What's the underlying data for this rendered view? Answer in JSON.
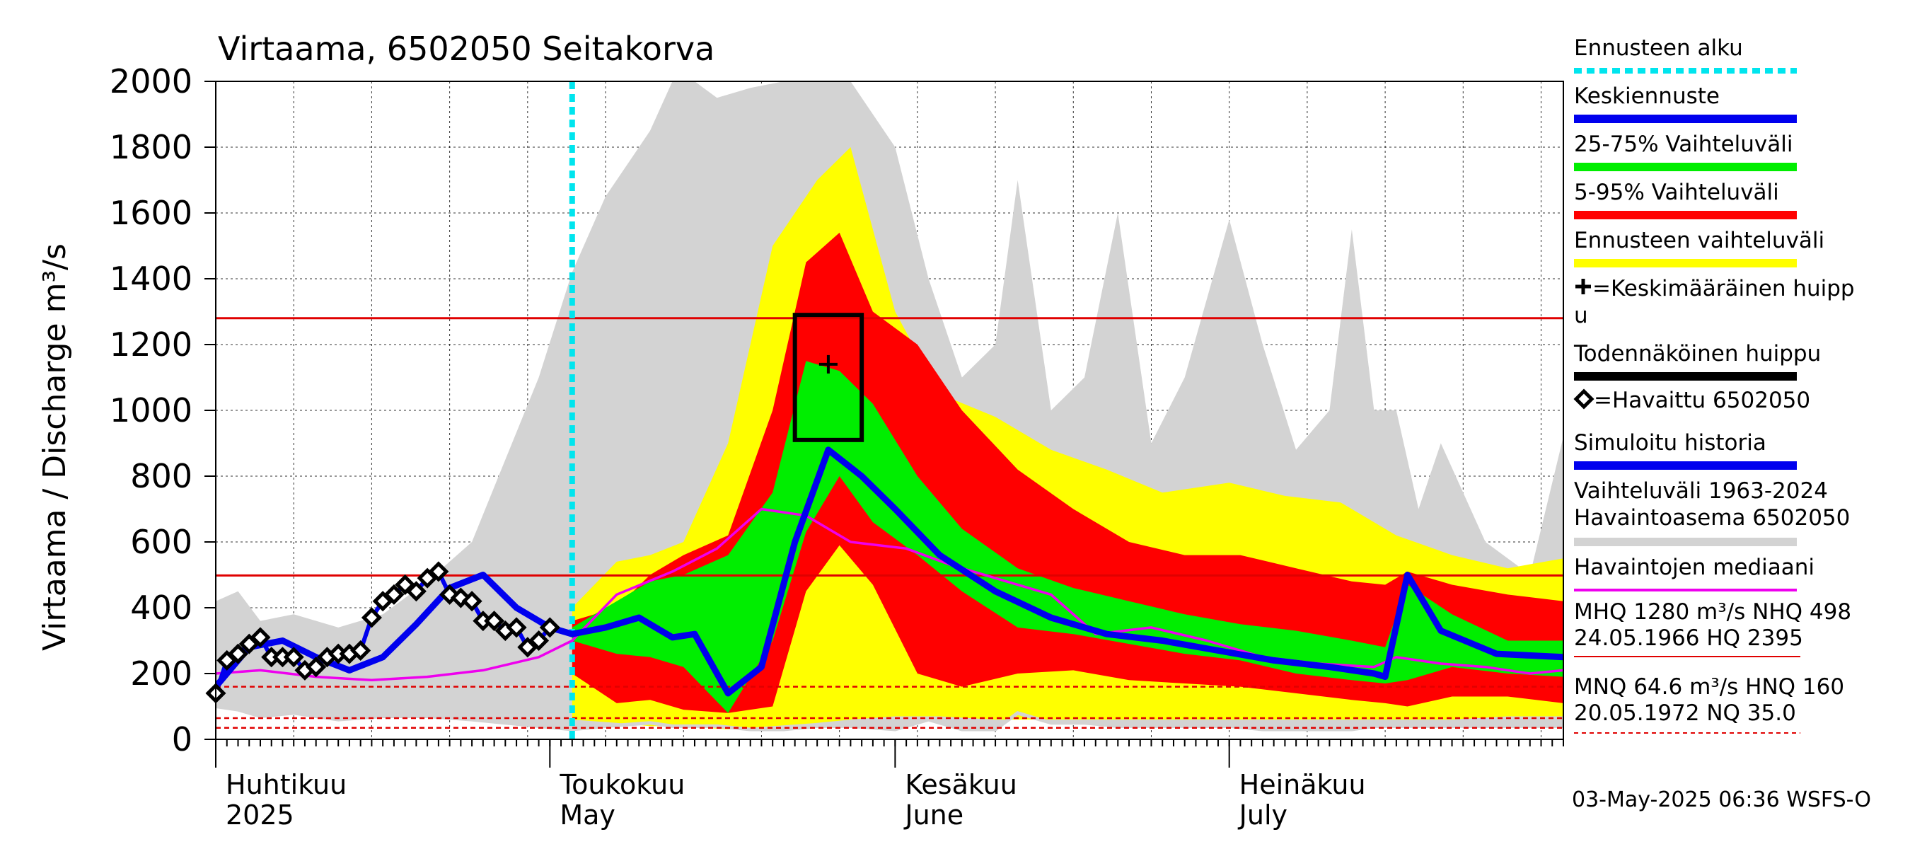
{
  "chart_data": {
    "type": "area",
    "title": "Virtaama, 6502050 Seitakorva",
    "ylabel": "Virtaama / Discharge   m³/s",
    "ylim": [
      0,
      2000
    ],
    "yticks": [
      "0",
      "200",
      "400",
      "600",
      "800",
      "1000",
      "1200",
      "1400",
      "1600",
      "1800",
      "2000"
    ],
    "x_start": "2025-04-01",
    "x_end": "2025-07-31",
    "months": [
      {
        "name_fi": "Huhtikuu",
        "name_en": "2025",
        "start": "2025-04-01"
      },
      {
        "name_fi": "Toukokuu",
        "name_en": "May",
        "start": "2025-05-01"
      },
      {
        "name_fi": "Kesäkuu",
        "name_en": "June",
        "start": "2025-06-01"
      },
      {
        "name_fi": "Heinäkuu",
        "name_en": "July",
        "start": "2025-07-01"
      }
    ],
    "forecast_start": "2025-05-03",
    "reference_lines": [
      {
        "name": "MHQ",
        "value": 1280,
        "style": "solid",
        "color": "#e00000"
      },
      {
        "name": "NHQ",
        "value": 498,
        "style": "solid",
        "color": "#e00000"
      },
      {
        "name": "MNQ",
        "value": 64.6,
        "style": "dashed",
        "color": "#e00000"
      },
      {
        "name": "HNQ",
        "value": 160,
        "style": "dashed",
        "color": "#e00000"
      },
      {
        "name": "NQ",
        "value": 35.0,
        "style": "dashed",
        "color": "#e00000"
      }
    ],
    "peak_box": {
      "x_from": "2025-05-23",
      "x_to": "2025-05-29",
      "y_from": 910,
      "y_to": 1290
    },
    "mean_peak": {
      "x": "2025-05-26",
      "y": 1140
    },
    "series": [
      {
        "name": "Vaihteluväli 1963-2024 Havaintoasema 6502050",
        "kind": "band",
        "color": "#d3d3d3",
        "x": [
          "2025-04-01",
          "2025-04-03",
          "2025-04-05",
          "2025-04-08",
          "2025-04-12",
          "2025-04-16",
          "2025-04-20",
          "2025-04-24",
          "2025-04-27",
          "2025-04-30",
          "2025-05-03",
          "2025-05-06",
          "2025-05-10",
          "2025-05-12",
          "2025-05-14",
          "2025-05-16",
          "2025-05-19",
          "2025-05-22",
          "2025-05-25",
          "2025-05-28",
          "2025-06-01",
          "2025-06-04",
          "2025-06-07",
          "2025-06-10",
          "2025-06-12",
          "2025-06-15",
          "2025-06-18",
          "2025-06-21",
          "2025-06-24",
          "2025-06-27",
          "2025-07-01",
          "2025-07-04",
          "2025-07-07",
          "2025-07-10",
          "2025-07-12",
          "2025-07-14",
          "2025-07-16",
          "2025-07-18",
          "2025-07-20",
          "2025-07-24",
          "2025-07-28",
          "2025-07-31"
        ],
        "low": [
          100,
          90,
          70,
          80,
          60,
          70,
          70,
          60,
          50,
          40,
          30,
          40,
          50,
          40,
          40,
          40,
          30,
          30,
          40,
          40,
          30,
          60,
          30,
          30,
          80,
          50,
          50,
          40,
          40,
          40,
          40,
          30,
          30,
          30,
          30,
          40,
          40,
          40,
          40,
          40,
          40,
          40
        ],
        "high": [
          420,
          450,
          360,
          380,
          340,
          380,
          480,
          600,
          850,
          1100,
          1420,
          1650,
          1850,
          2000,
          2000,
          1950,
          1980,
          2000,
          2000,
          2000,
          1800,
          1400,
          1100,
          1200,
          1700,
          1000,
          1100,
          1600,
          900,
          1100,
          1580,
          1200,
          880,
          1000,
          1550,
          1000,
          1000,
          700,
          900,
          600,
          500,
          920
        ]
      },
      {
        "name": "Ennusteen vaihteluväli",
        "kind": "band",
        "color": "#ffff00",
        "x": [
          "2025-05-03",
          "2025-05-07",
          "2025-05-10",
          "2025-05-13",
          "2025-05-17",
          "2025-05-21",
          "2025-05-25",
          "2025-05-28",
          "2025-06-01",
          "2025-06-05",
          "2025-06-10",
          "2025-06-15",
          "2025-06-20",
          "2025-06-25",
          "2025-07-01",
          "2025-07-06",
          "2025-07-11",
          "2025-07-16",
          "2025-07-21",
          "2025-07-26",
          "2025-07-31"
        ],
        "low": [
          60,
          50,
          40,
          40,
          30,
          40,
          50,
          60,
          70,
          70,
          60,
          60,
          60,
          60,
          60,
          60,
          60,
          60,
          60,
          70,
          70
        ],
        "high": [
          400,
          540,
          560,
          600,
          900,
          1500,
          1700,
          1800,
          1300,
          1050,
          980,
          880,
          820,
          750,
          780,
          740,
          720,
          620,
          560,
          520,
          550
        ]
      },
      {
        "name": "5-95% Vaihteluväli",
        "kind": "band",
        "color": "#ff0000",
        "x": [
          "2025-05-03",
          "2025-05-07",
          "2025-05-10",
          "2025-05-13",
          "2025-05-17",
          "2025-05-21",
          "2025-05-24",
          "2025-05-27",
          "2025-05-30",
          "2025-06-03",
          "2025-06-07",
          "2025-06-12",
          "2025-06-17",
          "2025-06-22",
          "2025-06-27",
          "2025-07-02",
          "2025-07-07",
          "2025-07-12",
          "2025-07-15",
          "2025-07-17",
          "2025-07-21",
          "2025-07-26",
          "2025-07-31"
        ],
        "low": [
          200,
          110,
          120,
          90,
          80,
          100,
          450,
          590,
          470,
          200,
          160,
          200,
          210,
          180,
          170,
          160,
          140,
          120,
          110,
          100,
          130,
          130,
          110
        ],
        "high": [
          360,
          400,
          500,
          560,
          620,
          1000,
          1450,
          1540,
          1300,
          1200,
          1000,
          820,
          700,
          600,
          560,
          560,
          520,
          480,
          470,
          510,
          470,
          440,
          420
        ]
      },
      {
        "name": "25-75% Vaihteluväli",
        "kind": "band",
        "color": "#00ee00",
        "x": [
          "2025-05-03",
          "2025-05-07",
          "2025-05-10",
          "2025-05-13",
          "2025-05-17",
          "2025-05-21",
          "2025-05-24",
          "2025-05-27",
          "2025-05-30",
          "2025-06-03",
          "2025-06-07",
          "2025-06-12",
          "2025-06-17",
          "2025-06-22",
          "2025-06-27",
          "2025-07-02",
          "2025-07-07",
          "2025-07-12",
          "2025-07-15",
          "2025-07-17",
          "2025-07-21",
          "2025-07-26",
          "2025-07-31"
        ],
        "low": [
          300,
          260,
          250,
          220,
          80,
          300,
          630,
          800,
          660,
          560,
          450,
          340,
          320,
          290,
          260,
          240,
          200,
          180,
          170,
          180,
          220,
          200,
          190
        ],
        "high": [
          340,
          420,
          480,
          500,
          560,
          750,
          1150,
          1120,
          1020,
          800,
          640,
          520,
          460,
          420,
          380,
          350,
          330,
          300,
          280,
          470,
          380,
          300,
          300
        ]
      },
      {
        "name": "Havaintojen mediaani",
        "kind": "line",
        "color": "#ee00ee",
        "x": [
          "2025-04-01",
          "2025-04-05",
          "2025-04-10",
          "2025-04-15",
          "2025-04-20",
          "2025-04-25",
          "2025-04-30",
          "2025-05-03",
          "2025-05-07",
          "2025-05-12",
          "2025-05-16",
          "2025-05-20",
          "2025-05-24",
          "2025-05-28",
          "2025-06-02",
          "2025-06-06",
          "2025-06-11",
          "2025-06-15",
          "2025-06-19",
          "2025-06-24",
          "2025-06-29",
          "2025-07-04",
          "2025-07-09",
          "2025-07-14",
          "2025-07-16",
          "2025-07-20",
          "2025-07-24",
          "2025-07-28",
          "2025-07-31"
        ],
        "y": [
          200,
          210,
          190,
          180,
          190,
          210,
          250,
          300,
          440,
          510,
          580,
          700,
          680,
          600,
          580,
          530,
          480,
          440,
          320,
          340,
          300,
          250,
          230,
          220,
          250,
          230,
          220,
          200,
          210
        ]
      },
      {
        "name": "Keskiennuste",
        "kind": "line",
        "color": "#0000ee",
        "x": [
          "2025-05-03",
          "2025-05-06",
          "2025-05-09",
          "2025-05-12",
          "2025-05-14",
          "2025-05-17",
          "2025-05-20",
          "2025-05-23",
          "2025-05-26",
          "2025-05-29",
          "2025-06-01",
          "2025-06-05",
          "2025-06-10",
          "2025-06-15",
          "2025-06-20",
          "2025-06-25",
          "2025-06-30",
          "2025-07-05",
          "2025-07-10",
          "2025-07-14",
          "2025-07-15",
          "2025-07-17",
          "2025-07-20",
          "2025-07-25",
          "2025-07-31"
        ],
        "y": [
          320,
          340,
          370,
          310,
          320,
          140,
          220,
          600,
          880,
          800,
          700,
          560,
          450,
          370,
          320,
          300,
          270,
          240,
          220,
          200,
          190,
          500,
          330,
          260,
          250
        ]
      },
      {
        "name": "Simuloitu historia",
        "kind": "line",
        "color": "#0000ee",
        "x": [
          "2025-04-01",
          "2025-04-04",
          "2025-04-07",
          "2025-04-10",
          "2025-04-13",
          "2025-04-16",
          "2025-04-19",
          "2025-04-22",
          "2025-04-25",
          "2025-04-28",
          "2025-05-01",
          "2025-05-03"
        ],
        "y": [
          160,
          280,
          300,
          250,
          210,
          250,
          350,
          460,
          500,
          400,
          340,
          320
        ]
      },
      {
        "name": "Havaittu 6502050",
        "kind": "markers",
        "color": "#000000",
        "x": [
          "2025-04-01",
          "2025-04-02",
          "2025-04-03",
          "2025-04-04",
          "2025-04-05",
          "2025-04-06",
          "2025-04-07",
          "2025-04-08",
          "2025-04-09",
          "2025-04-10",
          "2025-04-11",
          "2025-04-12",
          "2025-04-13",
          "2025-04-14",
          "2025-04-15",
          "2025-04-16",
          "2025-04-17",
          "2025-04-18",
          "2025-04-19",
          "2025-04-20",
          "2025-04-21",
          "2025-04-22",
          "2025-04-23",
          "2025-04-24",
          "2025-04-25",
          "2025-04-26",
          "2025-04-27",
          "2025-04-28",
          "2025-04-29",
          "2025-04-30",
          "2025-05-01"
        ],
        "y": [
          140,
          240,
          260,
          290,
          310,
          250,
          250,
          250,
          210,
          220,
          250,
          260,
          260,
          270,
          370,
          420,
          440,
          470,
          450,
          490,
          510,
          440,
          430,
          420,
          360,
          360,
          330,
          340,
          280,
          300,
          340
        ]
      }
    ]
  },
  "legend": [
    {
      "label": "Ennusteen alku",
      "style": "dotted",
      "color": "#00e5ee"
    },
    {
      "label": "Keskiennuste",
      "style": "line",
      "color": "#0000ee"
    },
    {
      "label": "25-75% Vaihteluväli",
      "style": "line",
      "color": "#00ee00"
    },
    {
      "label": "5-95% Vaihteluväli",
      "style": "line",
      "color": "#ff0000"
    },
    {
      "label": "Ennusteen vaihteluväli",
      "style": "line",
      "color": "#ffff00"
    },
    {
      "label": "=Keskimääräinen huipp",
      "label2": "u",
      "style": "plus",
      "color": "#000000"
    },
    {
      "label": "Todennäköinen huippu",
      "style": "line",
      "color": "#000000"
    },
    {
      "label": "=Havaittu 6502050",
      "style": "diamond",
      "color": "#000000"
    },
    {
      "label": "Simuloitu historia",
      "style": "line",
      "color": "#0000ee"
    },
    {
      "label": "Vaihteluväli 1963-2024",
      "label2": " Havaintoasema 6502050",
      "style": "line",
      "color": "#d3d3d3"
    },
    {
      "label": "Havaintojen mediaani",
      "style": "thinline",
      "color": "#ee00ee"
    }
  ],
  "stats_text": {
    "line1": "MHQ 1280 m³/s NHQ  498",
    "line2": "24.05.1966 HQ 2395",
    "line3": "MNQ 64.6 m³/s HNQ  160",
    "line4": "20.05.1972 NQ 35.0"
  },
  "footer": "03-May-2025 06:36 WSFS-O"
}
